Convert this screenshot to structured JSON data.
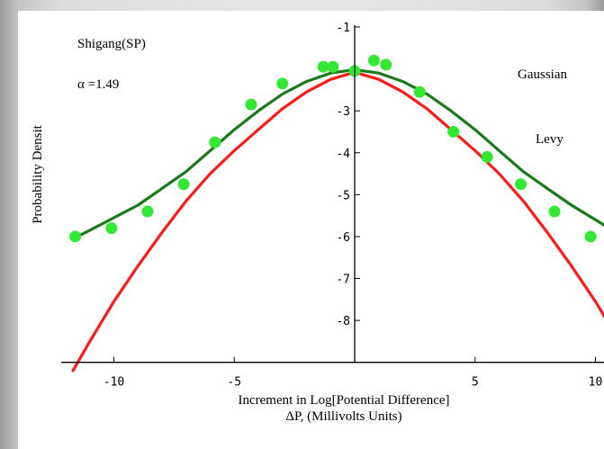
{
  "chart_data": {
    "type": "line",
    "title": "",
    "xlabel": "Increment in Log[Potential Difference]",
    "xlabel2": "ΔP,  (Millivolts Units)",
    "ylabel": "Probability Densit",
    "xlim": [
      -12,
      12
    ],
    "ylim": [
      -9.2,
      -1
    ],
    "x_ticks": [
      -10,
      -5,
      5,
      10
    ],
    "y_ticks": [
      -1,
      -3,
      -4,
      -5,
      -6,
      -7,
      -8
    ],
    "grid": false,
    "annotations": {
      "dataset": "Shigang(SP)",
      "alpha": "α =1.49",
      "gaussian": "Gaussian",
      "levy": "Levy"
    },
    "series": [
      {
        "name": "Gaussian",
        "color": "#ff1a1a",
        "x": [
          -11.7,
          -11,
          -10,
          -9,
          -8,
          -7,
          -6,
          -5,
          -4,
          -3,
          -2,
          -1,
          0,
          1,
          2,
          3,
          4,
          5,
          6,
          7,
          8,
          9,
          10,
          11,
          11.7
        ],
        "y": [
          -9.2,
          -8.5,
          -7.55,
          -6.7,
          -5.9,
          -5.15,
          -4.5,
          -3.95,
          -3.45,
          -2.95,
          -2.55,
          -2.25,
          -2.08,
          -2.25,
          -2.55,
          -2.95,
          -3.45,
          -3.95,
          -4.5,
          -5.15,
          -5.9,
          -6.7,
          -7.55,
          -8.5,
          -9.2
        ]
      },
      {
        "name": "Levy",
        "color": "#1a7a1a",
        "x": [
          -11.7,
          -11,
          -10,
          -9,
          -8,
          -7,
          -6,
          -5,
          -4,
          -3,
          -2,
          -1,
          0,
          1,
          2,
          3,
          4,
          5,
          6,
          7,
          8,
          9,
          10,
          11,
          11.7
        ],
        "y": [
          -6.05,
          -5.85,
          -5.55,
          -5.25,
          -4.85,
          -4.45,
          -3.95,
          -3.45,
          -3.0,
          -2.6,
          -2.3,
          -2.1,
          -2.02,
          -2.1,
          -2.3,
          -2.6,
          -3.0,
          -3.45,
          -3.95,
          -4.45,
          -4.85,
          -5.25,
          -5.6,
          -5.95,
          -6.15
        ]
      },
      {
        "name": "data",
        "color": "#33e833",
        "x": [
          -11.6,
          -10.1,
          -8.6,
          -7.1,
          -5.8,
          -4.3,
          -3.0,
          -1.3,
          -0.9,
          0.0,
          0.8,
          1.3,
          2.7,
          4.1,
          5.5,
          6.9,
          8.3,
          9.8,
          11.2
        ],
        "y": [
          -6.0,
          -5.8,
          -5.4,
          -4.75,
          -3.75,
          -2.85,
          -2.35,
          -1.95,
          -1.95,
          -2.05,
          -1.8,
          -1.9,
          -2.55,
          -3.5,
          -4.1,
          -4.75,
          -5.4,
          -6.0,
          -6.2
        ]
      }
    ]
  }
}
